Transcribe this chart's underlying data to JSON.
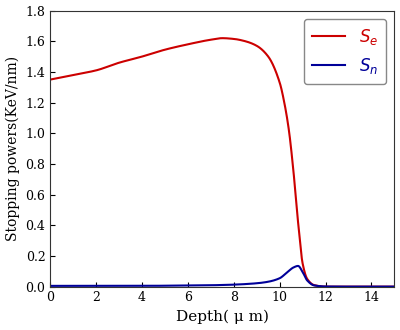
{
  "xlim": [
    0,
    15
  ],
  "ylim": [
    0.0,
    1.8
  ],
  "yticks": [
    0.0,
    0.2,
    0.4,
    0.6,
    0.8,
    1.0,
    1.2,
    1.4,
    1.6,
    1.8
  ],
  "xticks": [
    0,
    2,
    4,
    6,
    8,
    10,
    12,
    14
  ],
  "Se_color": "#cc0000",
  "Sn_color": "#000099",
  "legend_Se": "$S_e$",
  "legend_Sn": "$S_n$",
  "xlabel": "Depth( μ m)",
  "ylabel": "Stopping powers (KeV/nm)",
  "background_color": "#ffffff",
  "se_points_x": [
    0,
    0.5,
    1,
    2,
    3,
    4,
    5,
    6,
    7,
    7.5,
    8,
    8.5,
    9,
    9.5,
    10,
    10.2,
    10.4,
    10.6,
    10.8,
    11.0,
    11.2,
    11.5,
    12,
    13,
    14,
    15
  ],
  "se_points_y": [
    1.35,
    1.365,
    1.38,
    1.41,
    1.46,
    1.5,
    1.545,
    1.58,
    1.61,
    1.62,
    1.615,
    1.6,
    1.57,
    1.5,
    1.33,
    1.2,
    1.02,
    0.75,
    0.42,
    0.15,
    0.05,
    0.01,
    0.0,
    0.0,
    0.0,
    0.0
  ],
  "sn_points_x": [
    0,
    1,
    2,
    3,
    4,
    5,
    6,
    7,
    8,
    9,
    9.5,
    10,
    10.3,
    10.6,
    10.8,
    11.0,
    11.2,
    11.5,
    12,
    13,
    14,
    15
  ],
  "sn_points_y": [
    0.005,
    0.005,
    0.005,
    0.005,
    0.005,
    0.006,
    0.007,
    0.009,
    0.013,
    0.022,
    0.032,
    0.055,
    0.09,
    0.125,
    0.135,
    0.095,
    0.04,
    0.008,
    0.001,
    0.0,
    0.0,
    0.0
  ]
}
